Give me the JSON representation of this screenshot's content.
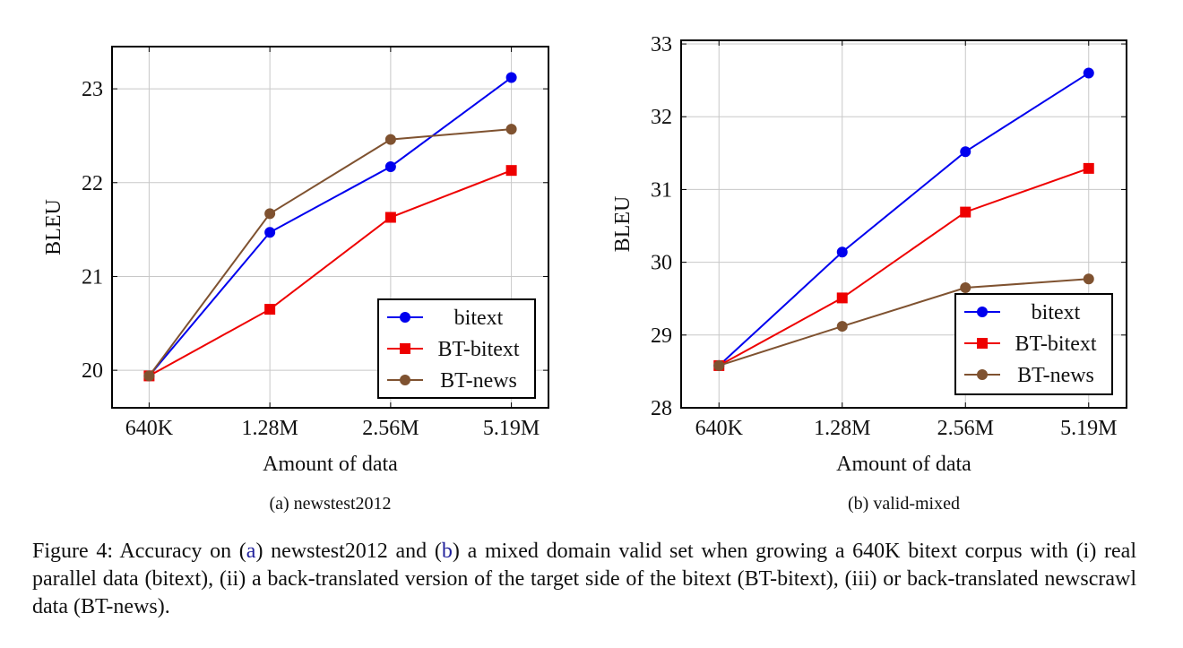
{
  "chart_data": [
    {
      "id": "a",
      "type": "line",
      "categories": [
        "640K",
        "1.28M",
        "2.56M",
        "5.19M"
      ],
      "xlabel": "Amount of data",
      "ylabel": "BLEU",
      "ylim": [
        19.6,
        23.45
      ],
      "yticks": [
        20,
        21,
        22,
        23
      ],
      "grid": true,
      "legend_placement": "bottom-right",
      "subcaption": "(a) newstest2012",
      "series": [
        {
          "name": "bitext",
          "marker": "circle",
          "color": "#0000ee",
          "values": [
            19.94,
            21.47,
            22.17,
            23.12
          ]
        },
        {
          "name": "BT-bitext",
          "marker": "square",
          "color": "#ee0000",
          "values": [
            19.94,
            20.65,
            21.63,
            22.13
          ]
        },
        {
          "name": "BT-news",
          "marker": "circle",
          "color": "#7f5230",
          "values": [
            19.94,
            21.67,
            22.46,
            22.57
          ]
        }
      ]
    },
    {
      "id": "b",
      "type": "line",
      "categories": [
        "640K",
        "1.28M",
        "2.56M",
        "5.19M"
      ],
      "xlabel": "Amount of data",
      "ylabel": "BLEU",
      "ylim": [
        28,
        33.05
      ],
      "yticks": [
        28,
        29,
        30,
        31,
        32,
        33
      ],
      "grid": true,
      "legend_placement": "bottom-right",
      "subcaption": "(b) valid-mixed",
      "series": [
        {
          "name": "bitext",
          "marker": "circle",
          "color": "#0000ee",
          "values": [
            28.58,
            30.14,
            31.52,
            32.6
          ]
        },
        {
          "name": "BT-bitext",
          "marker": "square",
          "color": "#ee0000",
          "values": [
            28.58,
            29.51,
            30.69,
            31.29
          ]
        },
        {
          "name": "BT-news",
          "marker": "circle",
          "color": "#7f5230",
          "values": [
            28.58,
            29.12,
            29.65,
            29.77
          ]
        }
      ]
    }
  ],
  "caption": {
    "lead": "Figure 4: Accuracy on (",
    "ref_a": "a",
    "mid": ") newstest2012 and (",
    "ref_b": "b",
    "rest": ") a mixed domain valid set when growing a 640K bitext corpus with (i) real parallel data (bitext), (ii) a back-translated version of the target side of the bitext (BT-bitext), (iii) or back-translated newscrawl data (BT-news)."
  }
}
